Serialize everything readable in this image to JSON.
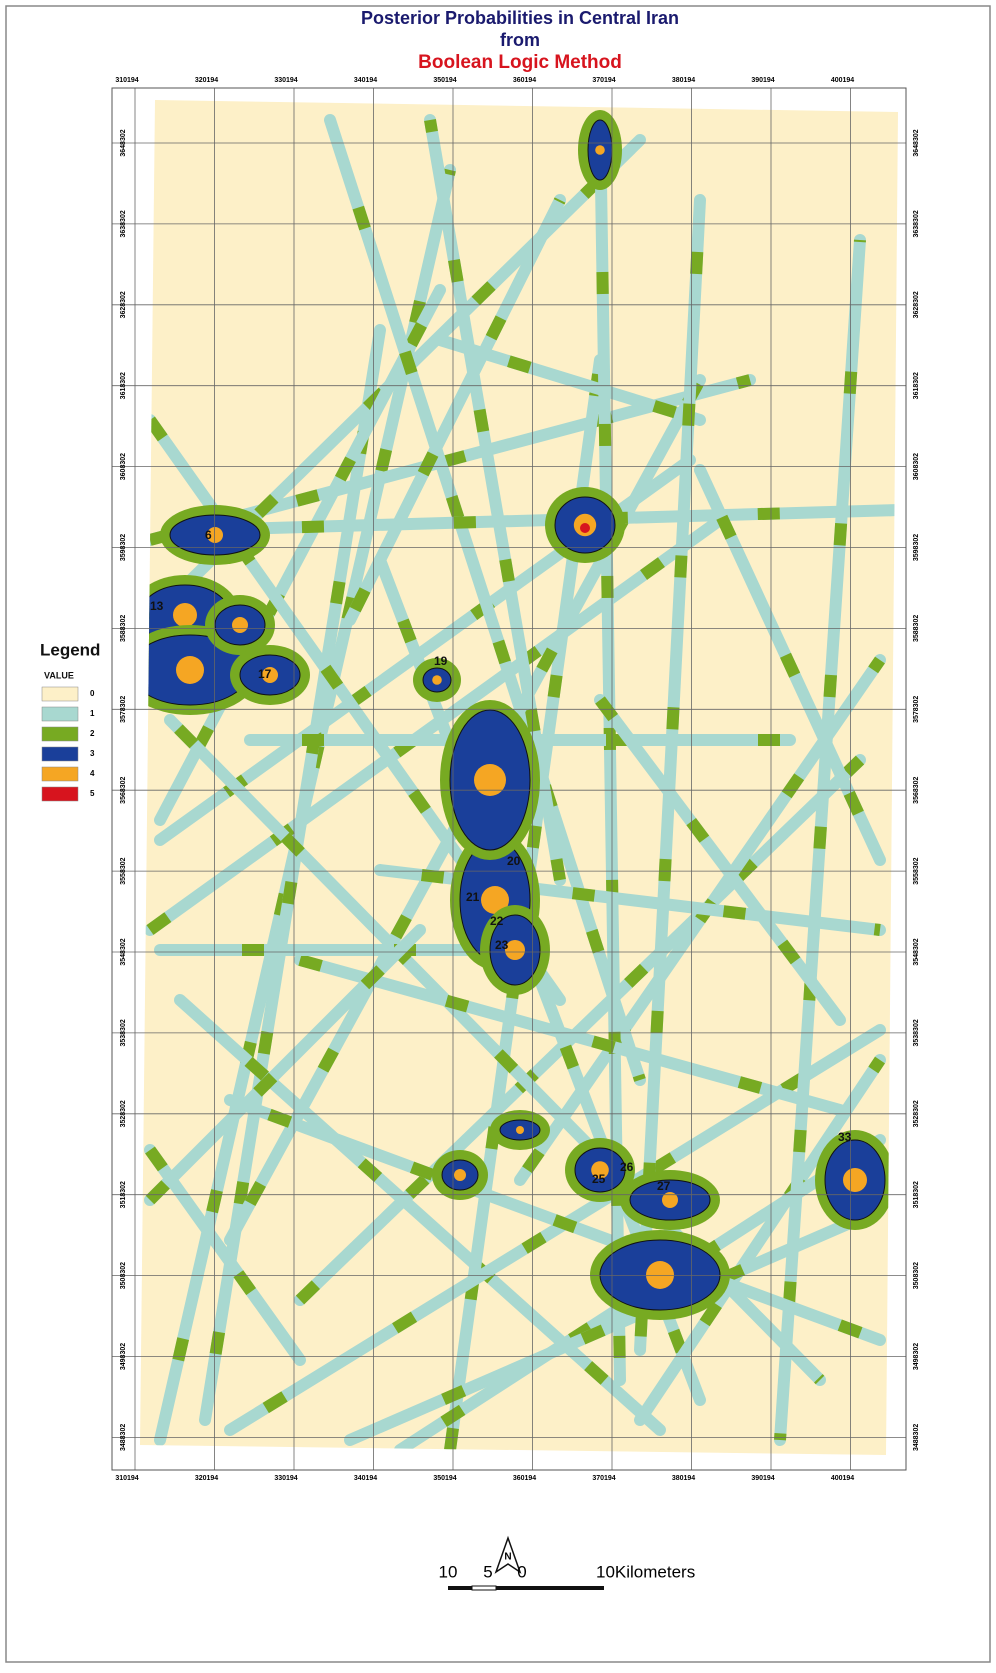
{
  "header": {
    "title": "Posterior Probabilities in Central Iran",
    "subtitle": "from",
    "method": "Boolean Logic Method"
  },
  "grid": {
    "eastings": [
      310194,
      320194,
      330194,
      340194,
      350194,
      360194,
      370194,
      380194,
      390194,
      400194
    ],
    "northings": [
      3648302,
      3638302,
      3628302,
      3618302,
      3608302,
      3598302,
      3588302,
      3578302,
      3568302,
      3558302,
      3548302,
      3538302,
      3528302,
      3518302,
      3508302,
      3498302,
      3488302
    ]
  },
  "legend": {
    "title": "Legend",
    "field": "VALUE",
    "items": [
      {
        "label": "0",
        "color": "#fdf0c8"
      },
      {
        "label": "1",
        "color": "#a8d8d0"
      },
      {
        "label": "2",
        "color": "#77aa22"
      },
      {
        "label": "3",
        "color": "#1a3f9a"
      },
      {
        "label": "4",
        "color": "#f5a623"
      },
      {
        "label": "5",
        "color": "#d7141e"
      }
    ]
  },
  "map_labels": [
    "6",
    "13",
    "17",
    "19",
    "20",
    "21",
    "22",
    "23",
    "25",
    "26",
    "27",
    "33"
  ],
  "scale_bar": {
    "labels": [
      "10",
      "5",
      "0",
      "10Kilometers"
    ]
  },
  "north_arrow": "N"
}
